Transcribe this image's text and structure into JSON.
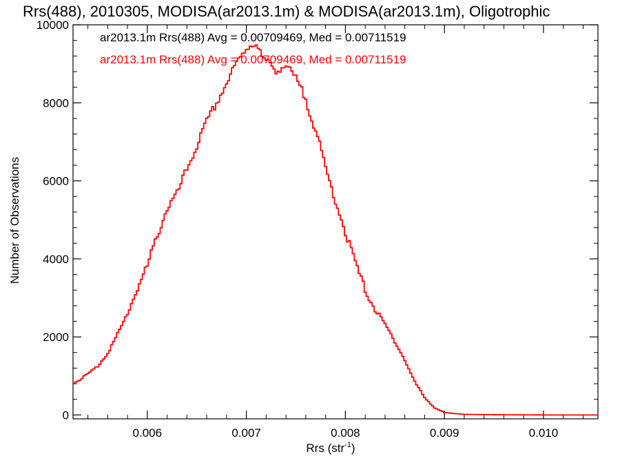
{
  "chart_data": {
    "type": "line",
    "title": "Rrs(488), 2010305, MODISA(ar2013.1m) & MODISA(ar2013.1m), Oligotrophic",
    "xlabel_main": "Rrs (str",
    "xlabel_sup": "-1",
    "xlabel_close": ")",
    "ylabel": "Number of Observations",
    "xlim": [
      0.00525,
      0.01055
    ],
    "ylim": [
      -100,
      10000
    ],
    "x_ticks": [
      0.006,
      0.007,
      0.008,
      0.009,
      0.01
    ],
    "x_tick_labels": [
      "0.006",
      "0.007",
      "0.008",
      "0.009",
      "0.010"
    ],
    "y_ticks": [
      0,
      2000,
      4000,
      6000,
      8000,
      10000
    ],
    "y_tick_labels": [
      "0",
      "2000",
      "4000",
      "6000",
      "8000",
      "10000"
    ],
    "grid": false,
    "style": "step",
    "annotations": [
      {
        "text": "ar2013.1m Rrs(488) Avg = 0.00709469, Med = 0.00711519",
        "color": "#000000"
      },
      {
        "text": "ar2013.1m Rrs(488) Avg = 0.00709469, Med = 0.00711519",
        "color": "#ff0000"
      }
    ],
    "series": [
      {
        "color": "#ff0000",
        "points": [
          [
            0.00525,
            800
          ],
          [
            0.0054,
            1050
          ],
          [
            0.0055,
            1250
          ],
          [
            0.0056,
            1600
          ],
          [
            0.0057,
            2050
          ],
          [
            0.0058,
            2600
          ],
          [
            0.0059,
            3250
          ],
          [
            0.006,
            3800
          ],
          [
            0.0061,
            4600
          ],
          [
            0.0062,
            5300
          ],
          [
            0.0063,
            5650
          ],
          [
            0.0064,
            6300
          ],
          [
            0.0065,
            6900
          ],
          [
            0.0066,
            7500
          ],
          [
            0.0067,
            8000
          ],
          [
            0.0068,
            8500
          ],
          [
            0.0069,
            9000
          ],
          [
            0.007,
            9400
          ],
          [
            0.00705,
            9500
          ],
          [
            0.0071,
            9550
          ],
          [
            0.00715,
            9200
          ],
          [
            0.0072,
            9050
          ],
          [
            0.0073,
            8850
          ],
          [
            0.0074,
            8950
          ],
          [
            0.0075,
            8600
          ],
          [
            0.0076,
            8100
          ],
          [
            0.0077,
            7300
          ],
          [
            0.0078,
            6300
          ],
          [
            0.0079,
            5500
          ],
          [
            0.008,
            4700
          ],
          [
            0.0081,
            3900
          ],
          [
            0.0082,
            3200
          ],
          [
            0.0083,
            2700
          ],
          [
            0.0084,
            2300
          ],
          [
            0.0085,
            1900
          ],
          [
            0.0086,
            1400
          ],
          [
            0.0087,
            850
          ],
          [
            0.0088,
            450
          ],
          [
            0.0089,
            180
          ],
          [
            0.009,
            60
          ],
          [
            0.0092,
            15
          ],
          [
            0.0095,
            5
          ],
          [
            0.01,
            0
          ],
          [
            0.01055,
            0
          ]
        ]
      }
    ]
  }
}
